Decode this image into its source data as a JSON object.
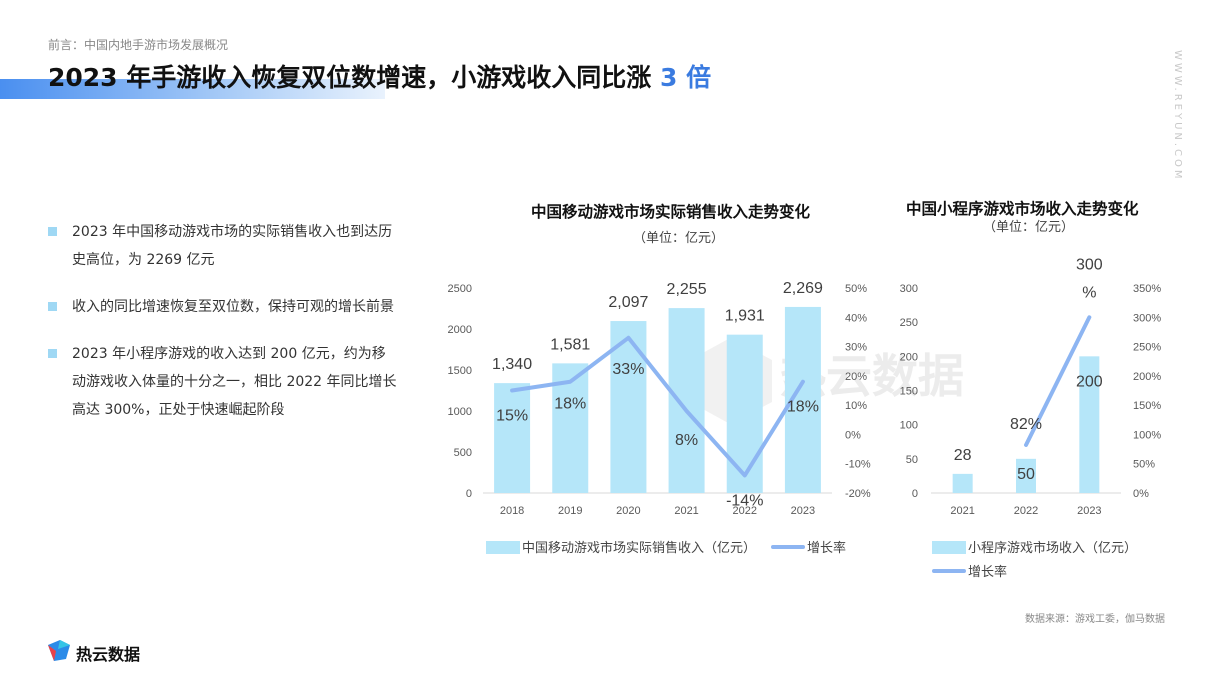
{
  "header": {
    "breadcrumb": "前言：中国内地手游市场发展概况",
    "title_main": "2023 年手游收入恢复双位数增速，小游戏收入同比涨 ",
    "title_highlight": "3 倍",
    "side_url": "WWW.REYUN.COM"
  },
  "bullets": [
    "2023 年中国移动游戏市场的实际销售收入也到达历史高位，为 2269 亿元",
    "收入的同比增速恢复至双位数，保持可观的增长前景",
    "2023 年小程序游戏的收入达到 200 亿元，约为移动游戏收入体量的十分之一，相比 2022 年同比增长高达 300%，正处于快速崛起阶段"
  ],
  "footer": {
    "source": "数据来源：游戏工委，伽马数据",
    "logo_text": "热云数据",
    "watermark": "热云数据"
  },
  "colors": {
    "bar": "#b5e6f9",
    "line": "#8db5f2",
    "accent": "#3a7be0"
  },
  "chart_data": [
    {
      "type": "bar",
      "title": "中国移动游戏市场实际销售收入走势变化",
      "unit": "（单位：亿元）",
      "categories": [
        "2018",
        "2019",
        "2020",
        "2021",
        "2022",
        "2023"
      ],
      "series": [
        {
          "name": "中国移动游戏市场实际销售收入（亿元）",
          "type": "bar",
          "axis": "left",
          "values": [
            1340,
            1581,
            2097,
            2255,
            1931,
            2269
          ],
          "labels": [
            "1,340",
            "1,581",
            "2,097",
            "2,255",
            "1,931",
            "2,269"
          ]
        },
        {
          "name": "增长率",
          "type": "line",
          "axis": "right",
          "values": [
            15,
            18,
            33,
            8,
            -14,
            18
          ],
          "labels": [
            "15%",
            "18%",
            "33%",
            "8%",
            "-14%",
            "18%"
          ]
        }
      ],
      "left_axis": {
        "ylim": [
          0,
          2500
        ],
        "ticks": [
          "0",
          "500",
          "1000",
          "1500",
          "2000",
          "2500"
        ]
      },
      "right_axis": {
        "ylim": [
          -20,
          50
        ],
        "ticks": [
          "-20%",
          "-10%",
          "0%",
          "10%",
          "20%",
          "30%",
          "40%",
          "50%"
        ]
      },
      "legend": "bottom"
    },
    {
      "type": "bar",
      "title": "中国小程序游戏市场收入走势变化",
      "unit": "（单位：亿元）",
      "categories": [
        "2021",
        "2022",
        "2023"
      ],
      "series": [
        {
          "name": "小程序游戏市场收入（亿元）",
          "type": "bar",
          "axis": "left",
          "values": [
            28,
            50,
            200
          ],
          "labels": [
            "28",
            "50",
            "200"
          ]
        },
        {
          "name": "增长率",
          "type": "line",
          "axis": "right",
          "values": [
            null,
            82,
            300
          ],
          "labels": [
            "",
            "82%",
            "300\n%"
          ]
        }
      ],
      "left_axis": {
        "ylim": [
          0,
          300
        ],
        "ticks": [
          "0",
          "50",
          "100",
          "150",
          "200",
          "250",
          "300"
        ]
      },
      "right_axis": {
        "ylim": [
          0,
          350
        ],
        "ticks": [
          "0%",
          "50%",
          "100%",
          "150%",
          "200%",
          "250%",
          "300%",
          "350%"
        ]
      },
      "legend": "bottom"
    }
  ]
}
